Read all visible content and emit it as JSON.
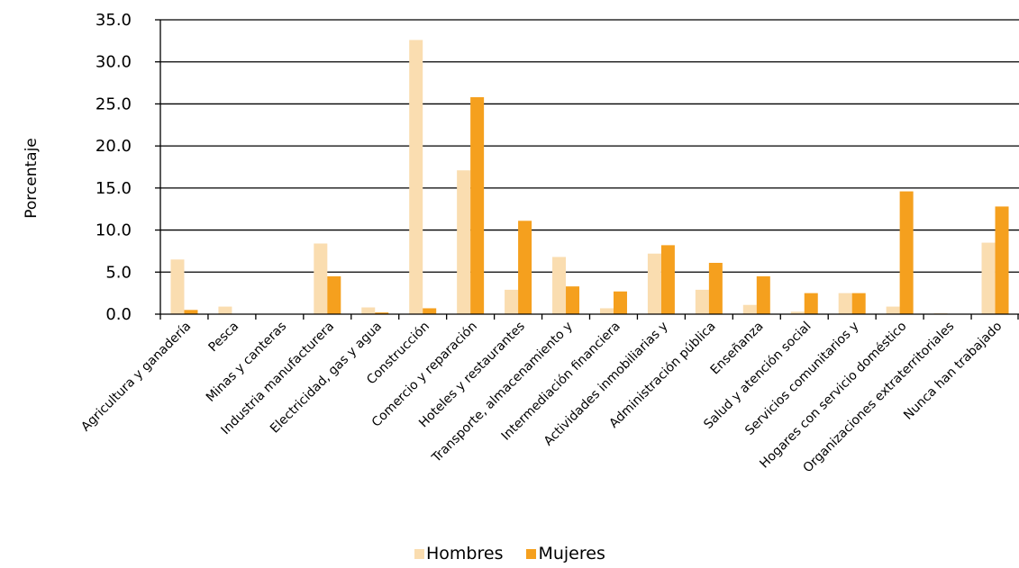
{
  "chart_data": {
    "type": "bar",
    "ylabel": "Porcentaje",
    "xlabel": "",
    "ylim": [
      0,
      35
    ],
    "yticks": [
      "0.0",
      "5.0",
      "10.0",
      "15.0",
      "20.0",
      "25.0",
      "30.0",
      "35.0"
    ],
    "grid": true,
    "legend_position": "bottom",
    "categories": [
      "Agricultura y ganadería",
      "Pesca",
      "Minas y canteras",
      "Industria manufacturera",
      "Electricidad, gas y agua",
      "Construcción",
      "Comercio y reparación",
      "Hoteles y restaurantes",
      "Transporte, almacenamiento y",
      "Intermediación financiera",
      "Actividades inmobiliarias y",
      "Administración pública",
      "Enseñanza",
      "Salud y atención social",
      "Servicios comunitarios y",
      "Hogares con servicio doméstico",
      "Organizaciones extraterritoriales",
      "Nunca han trabajado"
    ],
    "series": [
      {
        "name": "Hombres",
        "color": "#FADDB0",
        "values": [
          6.5,
          0.9,
          0.0,
          8.4,
          0.8,
          32.6,
          17.1,
          2.9,
          6.8,
          0.7,
          7.2,
          2.9,
          1.1,
          0.3,
          2.5,
          0.9,
          0.1,
          8.5
        ]
      },
      {
        "name": "Mujeres",
        "color": "#F5A01E",
        "values": [
          0.5,
          0.0,
          0.0,
          4.5,
          0.2,
          0.7,
          25.8,
          11.1,
          3.3,
          2.7,
          8.2,
          6.1,
          4.5,
          2.5,
          2.5,
          14.6,
          0.0,
          12.8
        ]
      }
    ]
  }
}
